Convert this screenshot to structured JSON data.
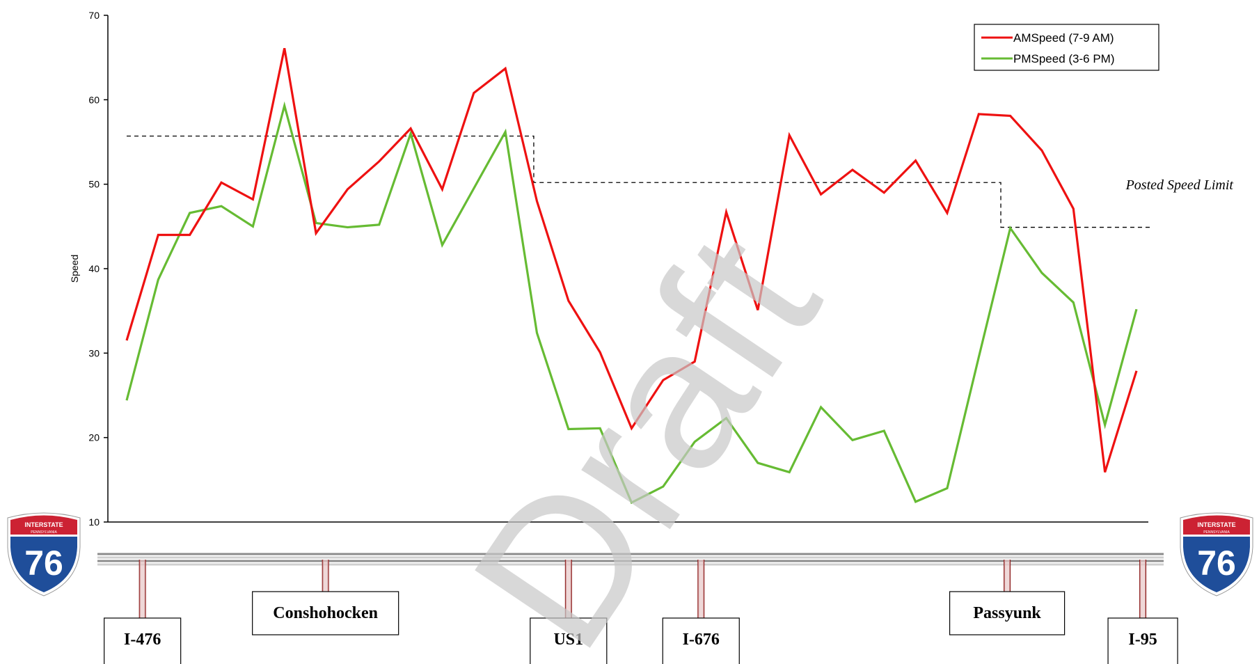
{
  "chart_data": {
    "type": "line",
    "ylabel": "Speed",
    "ylim": [
      10,
      70
    ],
    "yticks": [
      10,
      20,
      30,
      40,
      50,
      60,
      70
    ],
    "grid": false,
    "legend_position": "top-right",
    "series": [
      {
        "name": "AMSpeed (7-9 AM)",
        "color": "#ee1111",
        "values": [
          31.5,
          44,
          44,
          50.2,
          48.2,
          66.1,
          44.2,
          49.4,
          52.7,
          56.6,
          49.4,
          60.8,
          63.7,
          48,
          36.2,
          30.1,
          21.1,
          26.8,
          29,
          46.7,
          35.1,
          55.8,
          48.8,
          51.7,
          49,
          52.8,
          46.6,
          58.3,
          58.1,
          54,
          47.1,
          15.9,
          27.9
        ]
      },
      {
        "name": "PMSpeed (3-6 PM)",
        "color": "#66bb33",
        "values": [
          24.4,
          38.7,
          46.6,
          47.4,
          45,
          59.3,
          45.4,
          44.9,
          45.2,
          56,
          42.8,
          49.5,
          56.2,
          32.4,
          21,
          21.1,
          12.3,
          14.2,
          19.5,
          22.3,
          17,
          15.9,
          23.6,
          19.7,
          20.8,
          12.4,
          14,
          29.5,
          44.8,
          39.5,
          36,
          21.5,
          35.2
        ]
      }
    ],
    "speed_limit": {
      "label": "Posted Speed Limit",
      "segments": [
        {
          "from_point": 0,
          "to_point": 12.9,
          "value": 55.7
        },
        {
          "from_point": 12.9,
          "to_point": 27.7,
          "value": 50.2
        },
        {
          "from_point": 27.7,
          "to_point": 32.5,
          "value": 44.9
        }
      ]
    },
    "interchanges": [
      {
        "name": "I-476",
        "point": 0.5
      },
      {
        "name": "Conshohocken",
        "point": 6.3
      },
      {
        "name": "US1",
        "point": 14
      },
      {
        "name": "I-676",
        "point": 18.2
      },
      {
        "name": "Passyunk",
        "point": 27.9
      },
      {
        "name": "I-95",
        "point": 32.2
      }
    ],
    "watermark": "Draft"
  },
  "shield": {
    "top_text": "INTERSTATE",
    "state_text": "PENNSYLVANIA",
    "number": "76",
    "colors": {
      "top": "#cc2233",
      "body": "#1f4e9a",
      "border": "#ffffff"
    }
  }
}
